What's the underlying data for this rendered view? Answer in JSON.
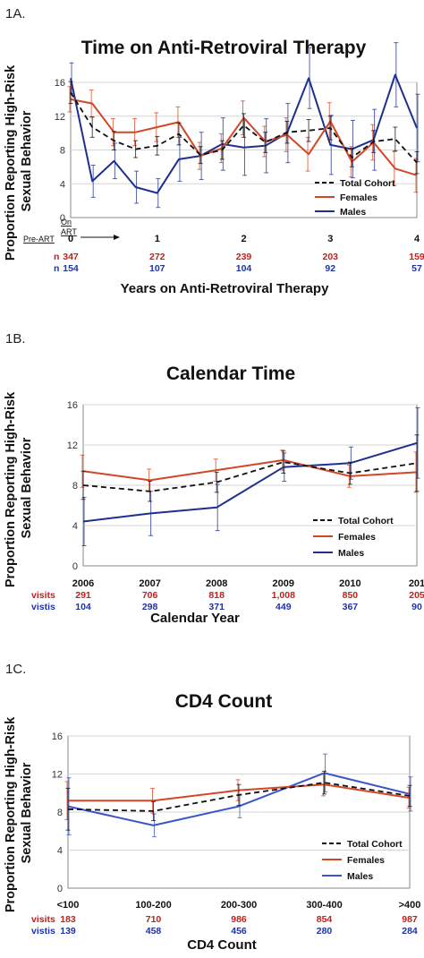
{
  "chart_data": [
    {
      "type": "line",
      "panel_label": "1A.",
      "title": "Time on Anti-Retroviral Therapy",
      "ylabel": "Proportion Reporting High-Risk Sexual Behavior",
      "xlabel": "Years on Anti-Retroviral Therapy",
      "ylim": [
        0,
        16
      ],
      "yticks": [
        "0",
        "4",
        "8",
        "12",
        "16"
      ],
      "xlim": [
        0,
        4
      ],
      "xticks": [
        "0",
        "1",
        "2",
        "3",
        "4"
      ],
      "pre_art_label": "Pre-ART",
      "on_art_label_1": "On",
      "on_art_label_2": "ART",
      "counts": [
        {
          "prefix": "n",
          "color": "#c0201e",
          "values": [
            "347",
            "272",
            "239",
            "203",
            "159"
          ]
        },
        {
          "prefix": "n",
          "color": "#1f33a6",
          "values": [
            "154",
            "107",
            "104",
            "92",
            "57"
          ]
        }
      ],
      "legend_position": "bottom-right",
      "series": [
        {
          "name": "Total Cohort",
          "color": "#111111",
          "dash": true,
          "x": [
            0,
            0.25,
            0.5,
            0.75,
            1,
            1.25,
            1.5,
            1.75,
            2,
            2.25,
            2.5,
            2.75,
            3,
            3.25,
            3.5,
            3.75,
            4
          ],
          "y": [
            14.8,
            10.7,
            9.1,
            8.1,
            8.5,
            9.9,
            7.4,
            8.0,
            10.9,
            8.9,
            10.1,
            10.3,
            10.6,
            7.1,
            9.0,
            9.3,
            6.5
          ],
          "err": [
            1.3,
            1.2,
            1.1,
            1.0,
            1.1,
            1.3,
            1.0,
            1.1,
            1.4,
            1.2,
            1.3,
            1.3,
            1.4,
            1.1,
            1.3,
            1.4,
            1.3
          ]
        },
        {
          "name": "Females",
          "color": "#d24726",
          "dash": false,
          "x": [
            0,
            0.25,
            0.5,
            0.75,
            1,
            1.25,
            1.5,
            1.75,
            2,
            2.25,
            2.5,
            2.75,
            3,
            3.25,
            3.5,
            3.75,
            4
          ],
          "y": [
            14.0,
            13.5,
            10.1,
            10.1,
            10.7,
            11.3,
            7.3,
            8.2,
            11.8,
            9.0,
            9.8,
            7.5,
            11.4,
            6.6,
            8.9,
            5.8,
            5.0
          ],
          "err": [
            1.5,
            1.6,
            1.6,
            1.6,
            1.7,
            1.8,
            1.6,
            1.7,
            2.0,
            1.8,
            2.0,
            2.0,
            2.2,
            1.8,
            2.1,
            2.0,
            2.0
          ]
        },
        {
          "name": "Males",
          "color": "#1f2f8f",
          "dash": false,
          "x": [
            0,
            0.25,
            0.5,
            0.75,
            1,
            1.25,
            1.5,
            1.75,
            2,
            2.25,
            2.5,
            2.75,
            3,
            3.25,
            3.5,
            3.75,
            4
          ],
          "y": [
            16.5,
            4.3,
            6.7,
            3.6,
            2.9,
            6.9,
            7.3,
            8.7,
            8.3,
            8.5,
            10.0,
            16.5,
            8.6,
            8.1,
            9.2,
            16.9,
            10.6
          ],
          "err": [
            1.8,
            1.9,
            2.1,
            1.9,
            1.7,
            2.6,
            2.8,
            3.1,
            3.3,
            3.2,
            3.5,
            3.6,
            3.5,
            3.4,
            3.6,
            3.8,
            4.0
          ]
        }
      ]
    },
    {
      "type": "line",
      "panel_label": "1B.",
      "title": "Calendar Time",
      "ylabel": "Proportion Reporting High-Risk Sexual Behavior",
      "xlabel": "Calendar  Year",
      "ylim": [
        0,
        16
      ],
      "yticks": [
        "0",
        "4",
        "8",
        "12",
        "16"
      ],
      "categories": [
        "2006",
        "2007",
        "2008",
        "2009",
        "2010",
        "201"
      ],
      "counts": [
        {
          "prefix": "visits",
          "color": "#c0201e",
          "values": [
            "291",
            "706",
            "818",
            "1,008",
            "850",
            "205"
          ]
        },
        {
          "prefix": "vistis",
          "color": "#1f33a6",
          "values": [
            "104",
            "298",
            "371",
            "449",
            "367",
            "90"
          ]
        }
      ],
      "legend_position": "bottom-right",
      "series": [
        {
          "name": "Total Cohort",
          "color": "#111111",
          "dash": true,
          "y": [
            8.0,
            7.4,
            8.3,
            10.3,
            9.2,
            10.2
          ],
          "err": [
            1.4,
            1.0,
            1.0,
            1.1,
            1.1,
            2.8
          ]
        },
        {
          "name": "Females",
          "color": "#d24726",
          "dash": false,
          "y": [
            9.4,
            8.5,
            9.5,
            10.5,
            8.9,
            9.3
          ],
          "err": [
            1.6,
            1.1,
            1.1,
            1.0,
            1.1,
            2.0
          ]
        },
        {
          "name": "Males",
          "color": "#1f2f8f",
          "dash": false,
          "y": [
            4.4,
            5.2,
            5.8,
            9.8,
            10.2,
            12.2
          ],
          "err": [
            2.4,
            2.2,
            2.3,
            1.4,
            1.6,
            3.5
          ]
        }
      ]
    },
    {
      "type": "line",
      "panel_label": "1C.",
      "title": "CD4 Count",
      "ylabel": "Proportion Reporting High-Risk Sexual Behavior",
      "xlabel": "CD4 Count",
      "ylim": [
        0,
        16
      ],
      "yticks": [
        "0",
        "4",
        "8",
        "12",
        "16"
      ],
      "categories": [
        "<100",
        "100-200",
        "200-300",
        "300-400",
        ">400"
      ],
      "counts": [
        {
          "prefix": "visits",
          "color": "#c0201e",
          "values": [
            "183",
            "710",
            "986",
            "854",
            "987"
          ]
        },
        {
          "prefix": "vistis",
          "color": "#1f33a6",
          "values": [
            "139",
            "458",
            "456",
            "280",
            "284"
          ]
        }
      ],
      "legend_position": "bottom-right",
      "series": [
        {
          "name": "Total Cohort",
          "color": "#111111",
          "dash": true,
          "y": [
            8.3,
            8.1,
            9.8,
            11.1,
            9.7
          ],
          "err": [
            2.2,
            1.0,
            1.1,
            1.2,
            1.1
          ]
        },
        {
          "name": "Females",
          "color": "#d24726",
          "dash": false,
          "y": [
            9.2,
            9.2,
            10.3,
            10.9,
            9.5
          ],
          "err": [
            2.0,
            1.3,
            1.1,
            1.2,
            1.1
          ]
        },
        {
          "name": "Males",
          "color": "#3b55c9",
          "dash": false,
          "y": [
            8.6,
            6.6,
            8.6,
            12.1,
            9.9
          ],
          "err": [
            3.0,
            1.2,
            1.2,
            2.0,
            1.8
          ]
        }
      ]
    }
  ]
}
